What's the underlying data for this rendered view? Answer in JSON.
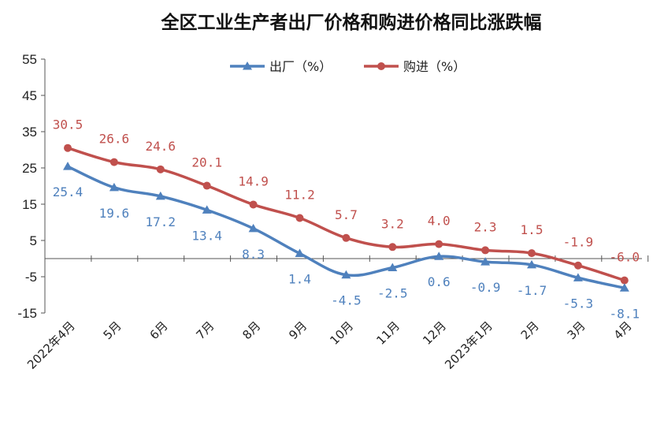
{
  "chart_data": {
    "type": "line",
    "title": "全区工业生产者出厂价格和购进价格同比涨跌幅",
    "categories": [
      "2022年4月",
      "5月",
      "6月",
      "7月",
      "8月",
      "9月",
      "10月",
      "11月",
      "12月",
      "2023年1月",
      "2月",
      "3月",
      "4月"
    ],
    "ylim": [
      -15,
      55
    ],
    "yticks": [
      55,
      45,
      35,
      25,
      15,
      5,
      -5,
      -15
    ],
    "grid": false,
    "legend_position": "top-center",
    "series": [
      {
        "name": "出厂（%）",
        "color": "#4F81BD",
        "marker": "triangle",
        "values": [
          25.4,
          19.6,
          17.2,
          13.4,
          8.3,
          1.4,
          -4.5,
          -2.5,
          0.6,
          -0.9,
          -1.7,
          -5.3,
          -8.1
        ],
        "labels": [
          "25.4",
          "19.6",
          "17.2",
          "13.4",
          "8.3",
          "1.4",
          "-4.5",
          "-2.5",
          "0.6",
          "-0.9",
          "-1.7",
          "-5.3",
          "-8.1"
        ]
      },
      {
        "name": "购进（%）",
        "color": "#C0504D",
        "marker": "circle",
        "values": [
          30.5,
          26.6,
          24.6,
          20.1,
          14.9,
          11.2,
          5.7,
          3.2,
          4.0,
          2.3,
          1.5,
          -1.9,
          -6.0
        ],
        "labels": [
          "30.5",
          "26.6",
          "24.6",
          "20.1",
          "14.9",
          "11.2",
          "5.7",
          "3.2",
          "4.0",
          "2.3",
          "1.5",
          "-1.9",
          "-6.0"
        ]
      }
    ]
  }
}
